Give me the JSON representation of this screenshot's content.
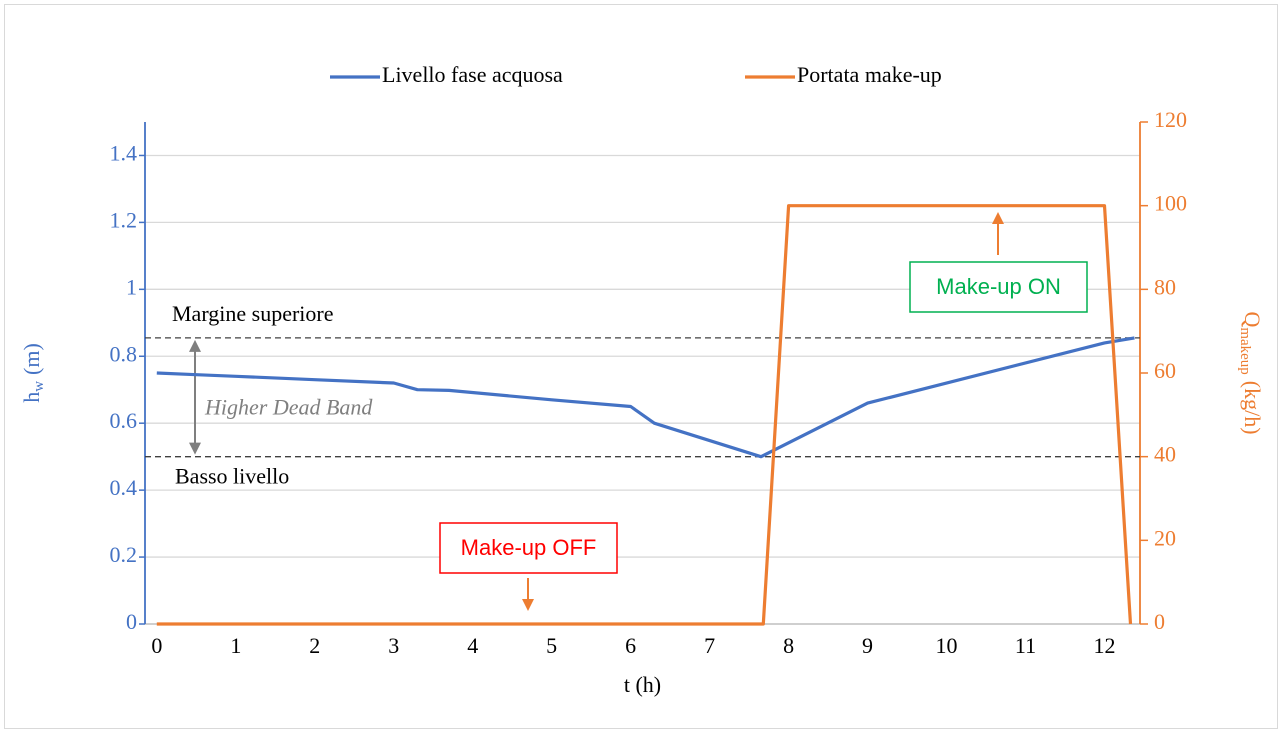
{
  "chart_data": {
    "type": "line",
    "legend": "top",
    "xlabel": "t (h)",
    "ylabel": {
      "main": "h",
      "sub": "w",
      "unit": "(m)"
    },
    "y2label": {
      "main": "Q",
      "sub": "makeup",
      "unit": "(kg/h)"
    },
    "xlim": [
      -0.15,
      12.45
    ],
    "xticks": [
      0,
      1,
      2,
      3,
      4,
      5,
      6,
      7,
      8,
      9,
      10,
      11,
      12
    ],
    "ylim": [
      0,
      1.5
    ],
    "yticks": [
      0,
      0.2,
      0.4,
      0.6,
      0.8,
      1,
      1.2,
      1.4
    ],
    "y2lim": [
      0,
      120
    ],
    "y2ticks": [
      0,
      20,
      40,
      60,
      80,
      100,
      120
    ],
    "grid": true,
    "series": [
      {
        "name": "Livello fase acquosa",
        "color": "#4472c4",
        "x": [
          0,
          0.5,
          1,
          2,
          3,
          3.3,
          3.7,
          5,
          6,
          6.3,
          7.65,
          9,
          12,
          12.38
        ],
        "values": [
          0.75,
          0.745,
          0.74,
          0.73,
          0.72,
          0.7,
          0.698,
          0.67,
          0.65,
          0.6,
          0.5,
          0.66,
          0.84,
          0.855
        ]
      },
      {
        "name": "Portata make-up",
        "color": "#ed7d31",
        "axis": "y2",
        "x": [
          0,
          7.68,
          8.0,
          12.0,
          12.33
        ],
        "values": [
          0,
          0,
          100,
          100,
          0
        ]
      }
    ],
    "reference_lines": [
      {
        "label": "Margine superiore",
        "value": 0.855
      },
      {
        "label": "Basso livello",
        "value": 0.5
      }
    ],
    "band_label": "Higher Dead Band",
    "annotations": [
      {
        "text": "Make-up ON",
        "color": "#00b050"
      },
      {
        "text": "Make-up OFF",
        "color": "#ff0000"
      }
    ]
  }
}
